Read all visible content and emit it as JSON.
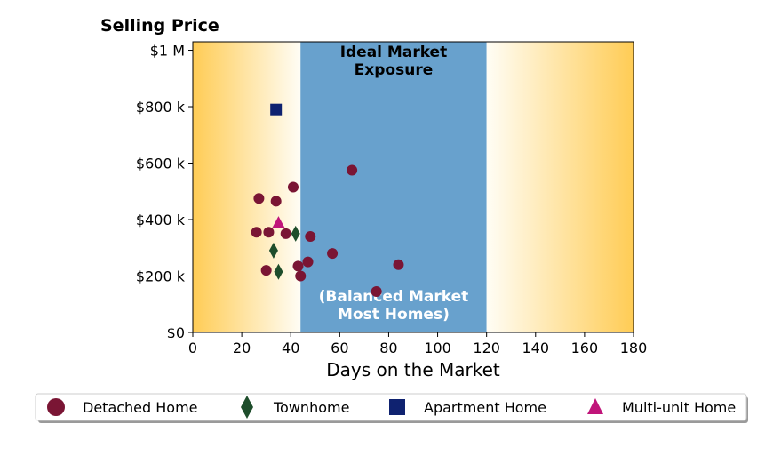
{
  "chart_data": {
    "type": "scatter",
    "title": "Selling Price",
    "xlabel": "Days on the Market",
    "ylabel": "",
    "xlim": [
      0,
      180
    ],
    "ylim": [
      0,
      1030000
    ],
    "xticks": [
      0,
      20,
      40,
      60,
      80,
      100,
      120,
      140,
      160,
      180
    ],
    "xtick_labels": [
      "0",
      "20",
      "40",
      "60",
      "80",
      "100",
      "120",
      "140",
      "160",
      "180"
    ],
    "yticks": [
      0,
      200000,
      400000,
      600000,
      800000,
      1000000
    ],
    "ytick_labels": [
      "$0",
      "$200 k",
      "$400 k",
      "$600 k",
      "$800 k",
      "$1 M"
    ],
    "grid": false,
    "bands": [
      {
        "x_start": 0,
        "x_end": 44,
        "fill": "gradient",
        "from_color": "#ffcc55",
        "to_color": "#fffdf5"
      },
      {
        "x_start": 44,
        "x_end": 120,
        "fill": "solid",
        "color": "#68a1cd"
      },
      {
        "x_start": 120,
        "x_end": 180,
        "fill": "gradient",
        "from_color": "#fffdf5",
        "to_color": "#ffcc55"
      }
    ],
    "annotations": [
      {
        "lines": [
          "Ideal Market",
          "Exposure"
        ],
        "x": 82,
        "style": "top",
        "color": "#000000"
      },
      {
        "lines": [
          "(Balanced Market",
          "Most Homes)"
        ],
        "x": 82,
        "style": "bottom",
        "color": "#ffffff"
      }
    ],
    "series": [
      {
        "name": "Detached Home",
        "marker": "circle",
        "color": "#7a1534",
        "points": [
          {
            "x": 27,
            "y": 475000
          },
          {
            "x": 34,
            "y": 465000
          },
          {
            "x": 41,
            "y": 515000
          },
          {
            "x": 65,
            "y": 575000
          },
          {
            "x": 26,
            "y": 355000
          },
          {
            "x": 31,
            "y": 355000
          },
          {
            "x": 38,
            "y": 350000
          },
          {
            "x": 48,
            "y": 340000
          },
          {
            "x": 57,
            "y": 280000
          },
          {
            "x": 47,
            "y": 250000
          },
          {
            "x": 43,
            "y": 235000
          },
          {
            "x": 84,
            "y": 240000
          },
          {
            "x": 30,
            "y": 220000
          },
          {
            "x": 44,
            "y": 200000
          },
          {
            "x": 75,
            "y": 145000
          }
        ]
      },
      {
        "name": "Townhome",
        "marker": "diamond",
        "color": "#1e4d2b",
        "points": [
          {
            "x": 42,
            "y": 350000
          },
          {
            "x": 33,
            "y": 290000
          },
          {
            "x": 35,
            "y": 215000
          }
        ]
      },
      {
        "name": "Apartment Home",
        "marker": "square",
        "color": "#0f2270",
        "points": [
          {
            "x": 34,
            "y": 790000
          }
        ]
      },
      {
        "name": "Multi-unit Home",
        "marker": "triangle",
        "color": "#c0157a",
        "points": [
          {
            "x": 35,
            "y": 390000
          }
        ]
      }
    ],
    "legend": {
      "placement": "bottom",
      "entries": [
        "Detached Home",
        "Townhome",
        "Apartment Home",
        "Multi-unit Home"
      ]
    }
  }
}
